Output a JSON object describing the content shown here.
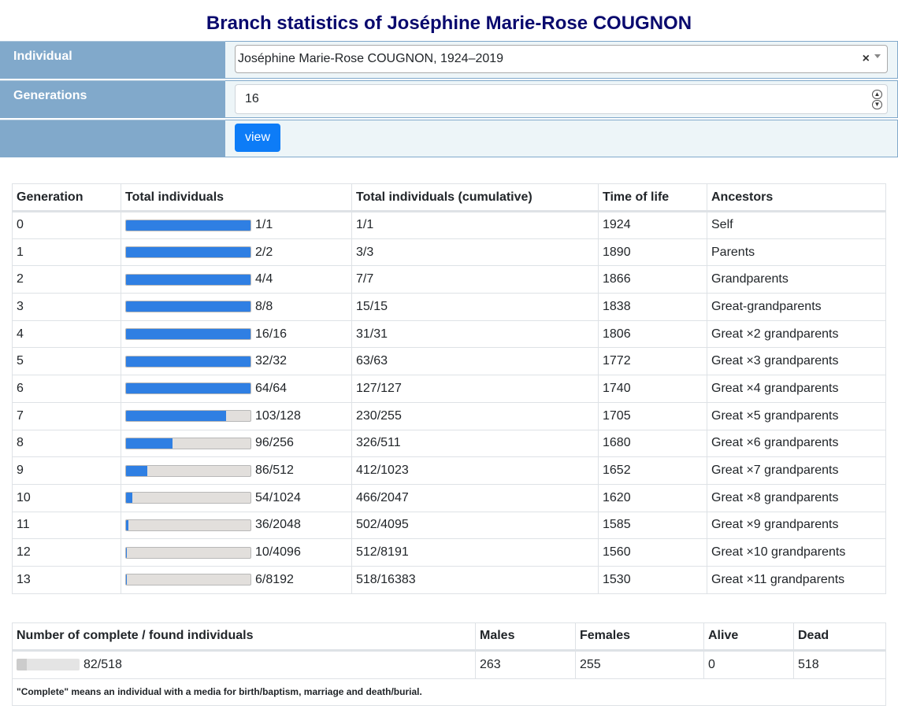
{
  "title": "Branch statistics of Joséphine Marie-Rose COUGNON",
  "form": {
    "individual_label": "Individual",
    "individual_value": "Joséphine Marie-Rose COUGNON, 1924–2019",
    "clear_label": "×",
    "generations_label": "Generations",
    "generations_value": "16",
    "view_label": "view"
  },
  "stats": {
    "headers": [
      "Generation",
      "Total individuals",
      "Total individuals (cumulative)",
      "Time of life",
      "Ancestors"
    ],
    "rows": [
      {
        "gen": "0",
        "found": 1,
        "total": 1,
        "count": "1/1",
        "cumulative": "1/1",
        "year": "1924",
        "ancestors": "Self"
      },
      {
        "gen": "1",
        "found": 2,
        "total": 2,
        "count": "2/2",
        "cumulative": "3/3",
        "year": "1890",
        "ancestors": "Parents"
      },
      {
        "gen": "2",
        "found": 4,
        "total": 4,
        "count": "4/4",
        "cumulative": "7/7",
        "year": "1866",
        "ancestors": "Grandparents"
      },
      {
        "gen": "3",
        "found": 8,
        "total": 8,
        "count": "8/8",
        "cumulative": "15/15",
        "year": "1838",
        "ancestors": "Great-grandparents"
      },
      {
        "gen": "4",
        "found": 16,
        "total": 16,
        "count": "16/16",
        "cumulative": "31/31",
        "year": "1806",
        "ancestors": "Great ×2 grandparents"
      },
      {
        "gen": "5",
        "found": 32,
        "total": 32,
        "count": "32/32",
        "cumulative": "63/63",
        "year": "1772",
        "ancestors": "Great ×3 grandparents"
      },
      {
        "gen": "6",
        "found": 64,
        "total": 64,
        "count": "64/64",
        "cumulative": "127/127",
        "year": "1740",
        "ancestors": "Great ×4 grandparents"
      },
      {
        "gen": "7",
        "found": 103,
        "total": 128,
        "count": "103/128",
        "cumulative": "230/255",
        "year": "1705",
        "ancestors": "Great ×5 grandparents"
      },
      {
        "gen": "8",
        "found": 96,
        "total": 256,
        "count": "96/256",
        "cumulative": "326/511",
        "year": "1680",
        "ancestors": "Great ×6 grandparents"
      },
      {
        "gen": "9",
        "found": 86,
        "total": 512,
        "count": "86/512",
        "cumulative": "412/1023",
        "year": "1652",
        "ancestors": "Great ×7 grandparents"
      },
      {
        "gen": "10",
        "found": 54,
        "total": 1024,
        "count": "54/1024",
        "cumulative": "466/2047",
        "year": "1620",
        "ancestors": "Great ×8 grandparents"
      },
      {
        "gen": "11",
        "found": 36,
        "total": 2048,
        "count": "36/2048",
        "cumulative": "502/4095",
        "year": "1585",
        "ancestors": "Great ×9 grandparents"
      },
      {
        "gen": "12",
        "found": 10,
        "total": 4096,
        "count": "10/4096",
        "cumulative": "512/8191",
        "year": "1560",
        "ancestors": "Great ×10 grandparents"
      },
      {
        "gen": "13",
        "found": 6,
        "total": 8192,
        "count": "6/8192",
        "cumulative": "518/16383",
        "year": "1530",
        "ancestors": "Great ×11 grandparents"
      }
    ]
  },
  "summary": {
    "headers": [
      "Number of complete / found individuals",
      "Males",
      "Females",
      "Alive",
      "Dead"
    ],
    "complete": 82,
    "found": 518,
    "complete_text": "82/518",
    "males": "263",
    "females": "255",
    "alive": "0",
    "dead": "518",
    "note": "\"Complete\" means an individual with a media for birth/baptism, marriage and death/burial."
  },
  "colors": {
    "title": "#0a0a6e",
    "label_bg": "#81a9cb",
    "value_bg": "#edf5f8",
    "button": "#0d7cf7",
    "bar_fill": "#2f7fe3",
    "bar_track": "#e2dfdc",
    "summary_fill": "#cccccc"
  },
  "icons": {
    "clear": "close-icon",
    "dropdown": "chevron-down-icon",
    "spinner": "spinner-icon"
  }
}
